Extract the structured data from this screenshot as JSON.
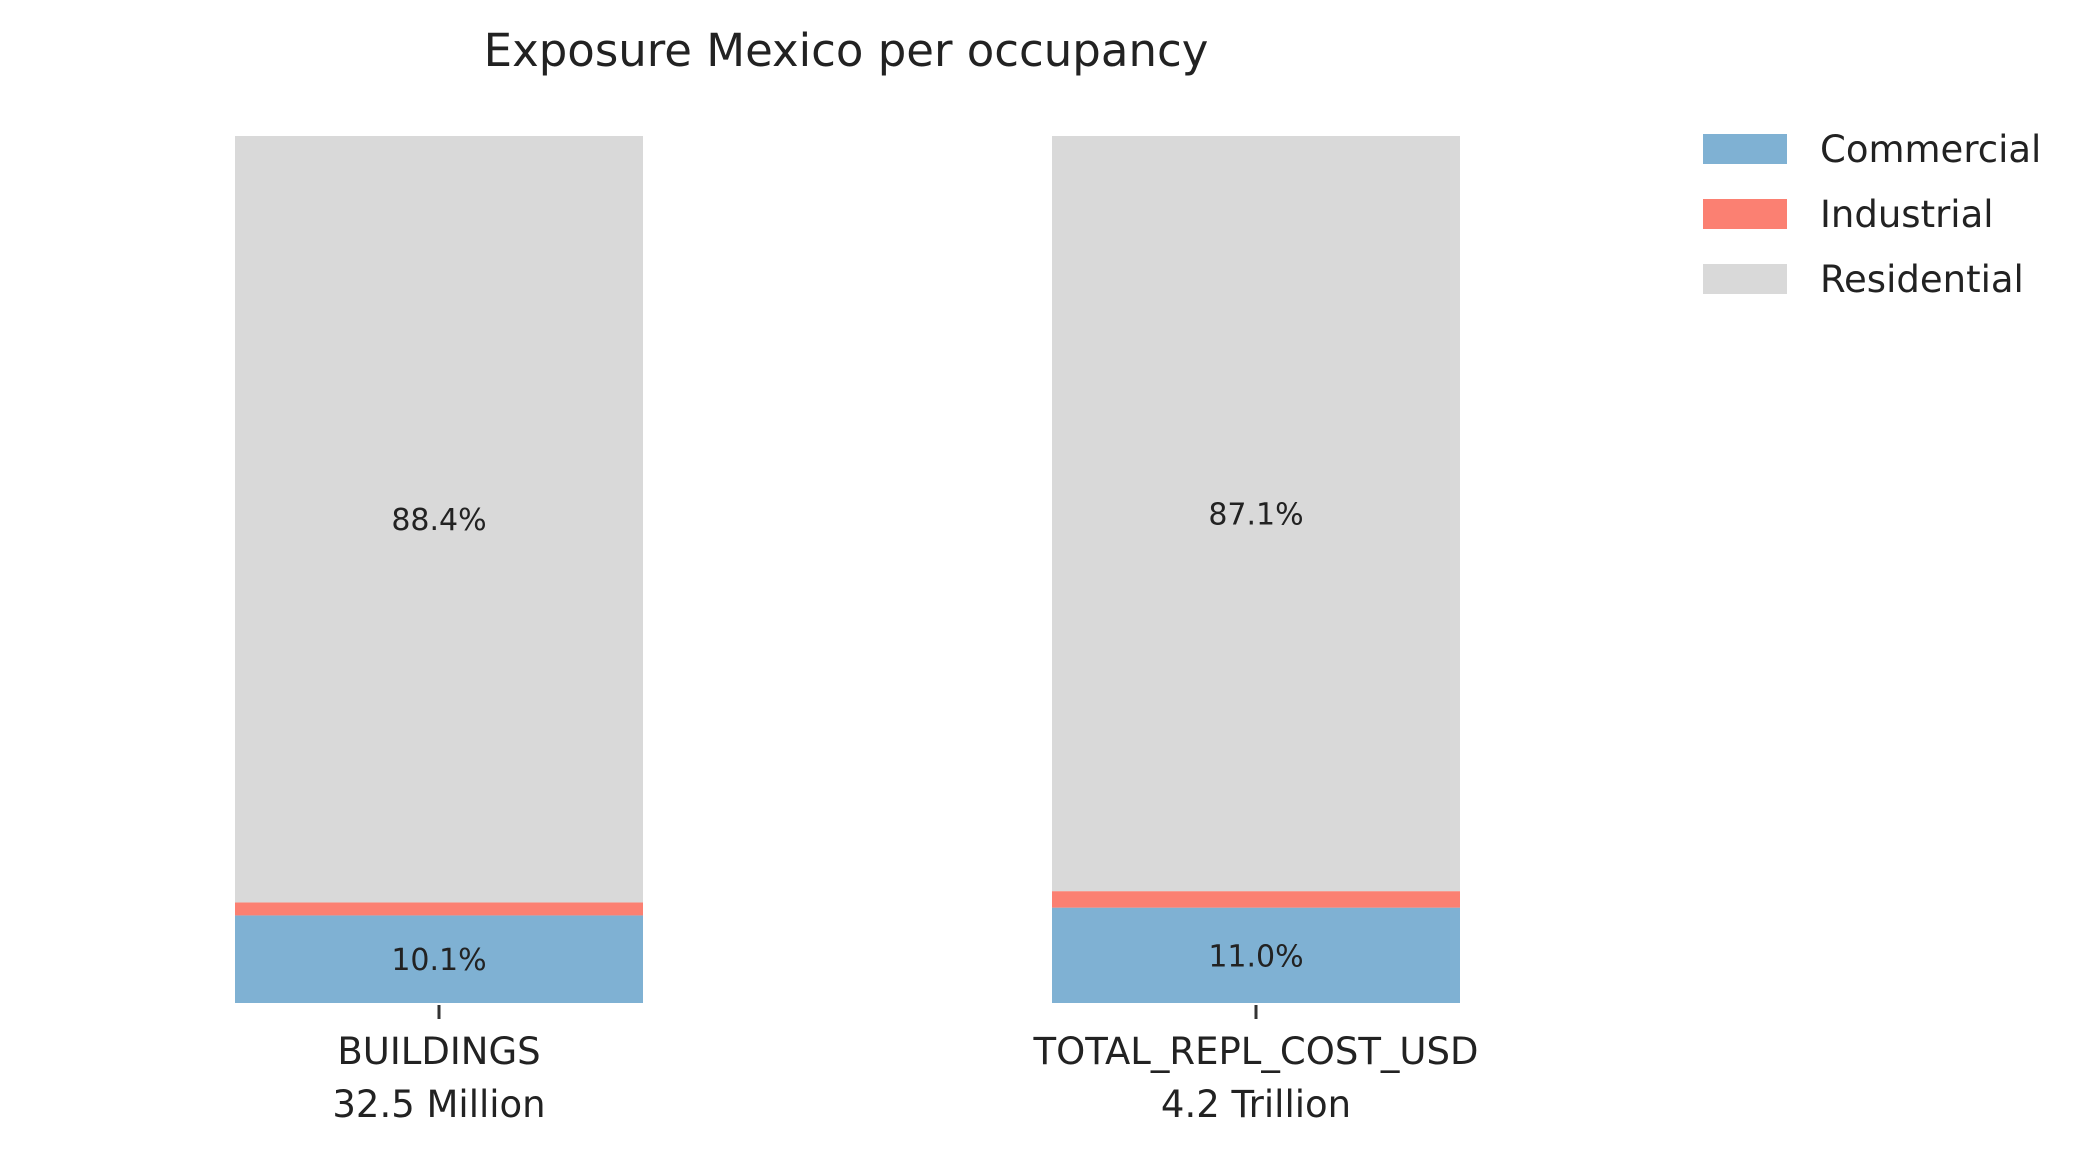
{
  "chart_data": {
    "type": "bar",
    "stacked": true,
    "normalized": true,
    "title": "Exposure Mexico per occupancy",
    "categories": [
      "BUILDINGS",
      "TOTAL_REPL_COST_USD"
    ],
    "category_totals": [
      "32.5 Million",
      "4.2 Trillion"
    ],
    "series": [
      {
        "name": "Commercial",
        "color": "#7fb1d3",
        "values": [
          10.1,
          11.0
        ],
        "labels": [
          "10.1%",
          "11.0%"
        ]
      },
      {
        "name": "Industrial",
        "color": "#fb8072",
        "values": [
          1.5,
          1.9
        ],
        "labels": [
          "",
          ""
        ]
      },
      {
        "name": "Residential",
        "color": "#d9d9d9",
        "values": [
          88.4,
          87.1
        ],
        "labels": [
          "88.4%",
          "87.1%"
        ]
      }
    ],
    "ylim": [
      0,
      100
    ],
    "xlabel": "",
    "ylabel": "",
    "grid": false,
    "legend_position": "top-right"
  }
}
